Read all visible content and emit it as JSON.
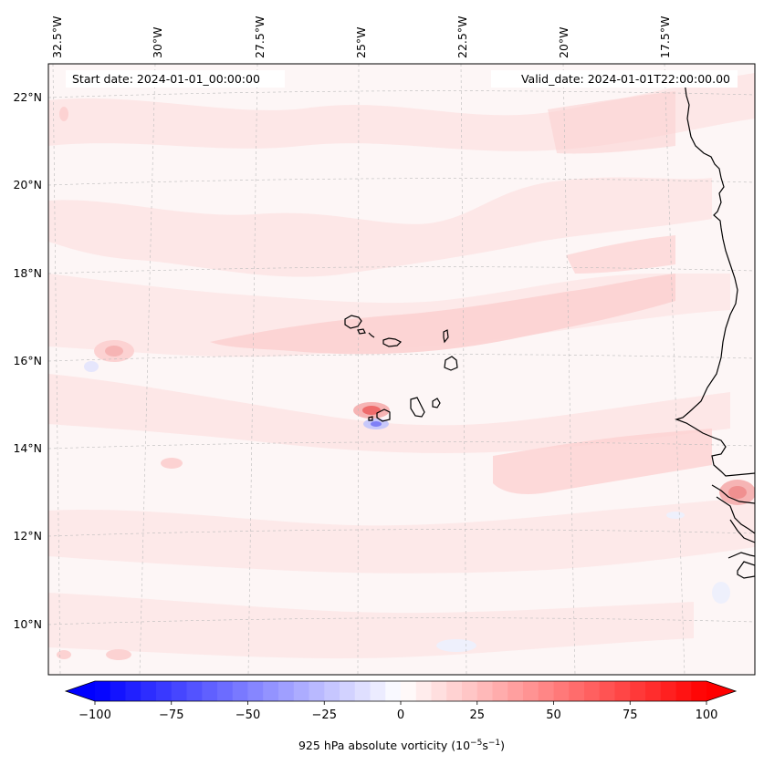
{
  "map": {
    "start_label": "Start date: 2024-01-01_00:00:00",
    "valid_label": "Valid_date: 2024-01-01T22:00:00.00",
    "lon_labels": [
      "32.5°W",
      "30°W",
      "27.5°W",
      "25°W",
      "22.5°W",
      "20°W",
      "17.5°W"
    ],
    "lat_labels": [
      "22°N",
      "20°N",
      "18°N",
      "16°N",
      "14°N",
      "12°N",
      "10°N"
    ],
    "field_colors": {
      "background": "#fdf6f6",
      "pale": "#fde6e6",
      "light": "#fcd2d2",
      "strong": "#f49a9a",
      "peak": "#ee6b6b",
      "neg": "#dcdcfc",
      "neg_strong": "#8080f6"
    }
  },
  "colorbar": {
    "ticks": [
      -100,
      -75,
      -50,
      -25,
      0,
      25,
      50,
      75,
      100
    ],
    "min": -100,
    "max": 100,
    "title": "925 hPa absolute vorticity (10",
    "title_exp": "−5",
    "title_mid": "s",
    "title_exp2": "−1",
    "title_end": ")",
    "neg_color": "#0000ff",
    "pos_color": "#ff0000"
  }
}
